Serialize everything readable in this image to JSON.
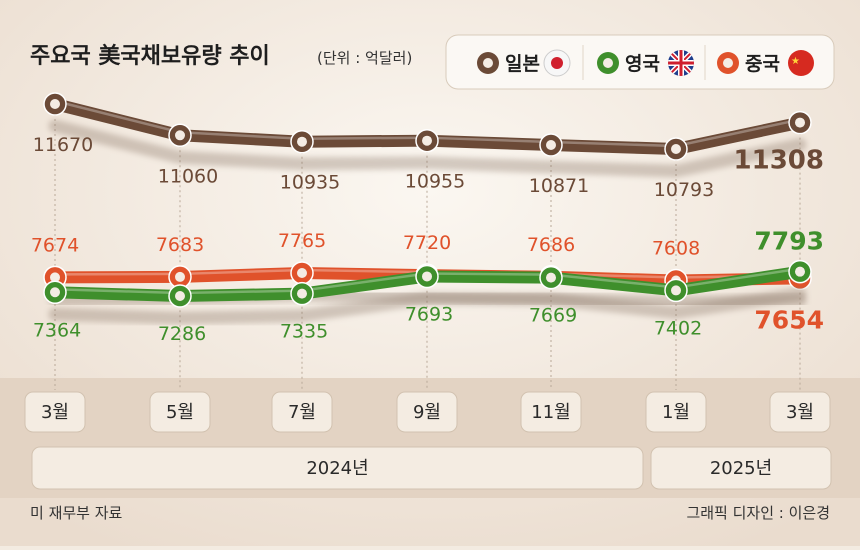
{
  "header": {
    "title": "주요국 美국채보유량 추이",
    "unit": "(단위 : 억달러)"
  },
  "legend": [
    {
      "label": "일본",
      "flag": "japan-flag-icon"
    },
    {
      "label": "영국",
      "flag": "uk-flag-icon"
    },
    {
      "label": "중국",
      "flag": "china-flag-icon"
    }
  ],
  "chart_data": {
    "type": "line",
    "categories": [
      "3월",
      "5월",
      "7월",
      "9월",
      "11월",
      "1월",
      "3월"
    ],
    "year_groups": [
      {
        "label": "2024년",
        "months": [
          "3월",
          "5월",
          "7월",
          "9월",
          "11월"
        ]
      },
      {
        "label": "2025년",
        "months": [
          "1월",
          "3월"
        ]
      }
    ],
    "unit": "억달러",
    "series": [
      {
        "name": "일본",
        "color": "#6b4a37",
        "values": [
          11670,
          11060,
          10935,
          10955,
          10871,
          10793,
          11308
        ]
      },
      {
        "name": "영국",
        "color": "#3f8f2c",
        "values": [
          7364,
          7286,
          7335,
          7693,
          7669,
          7402,
          7793
        ]
      },
      {
        "name": "중국",
        "color": "#e0522b",
        "values": [
          7674,
          7683,
          7765,
          7720,
          7686,
          7608,
          7654
        ]
      }
    ],
    "labels": {
      "japan": [
        "11670",
        "11060",
        "10935",
        "10955",
        "10871",
        "10793",
        "11308"
      ],
      "uk": [
        "7364",
        "7286",
        "7335",
        "7693",
        "7669",
        "7402",
        "7793"
      ],
      "china": [
        "7674",
        "7683",
        "7765",
        "7720",
        "7686",
        "7608",
        "7654"
      ]
    },
    "legend_position": "top-right",
    "grid": "vertical dashed"
  },
  "footer": {
    "source": "미 재무부 자료",
    "credit": "그래픽 디자인 : 이은경"
  },
  "colors": {
    "background": "#f3ebe1",
    "band": "#e5d5c5",
    "japan": "#6b4a37",
    "uk": "#3f8f2c",
    "china": "#e0522b"
  }
}
